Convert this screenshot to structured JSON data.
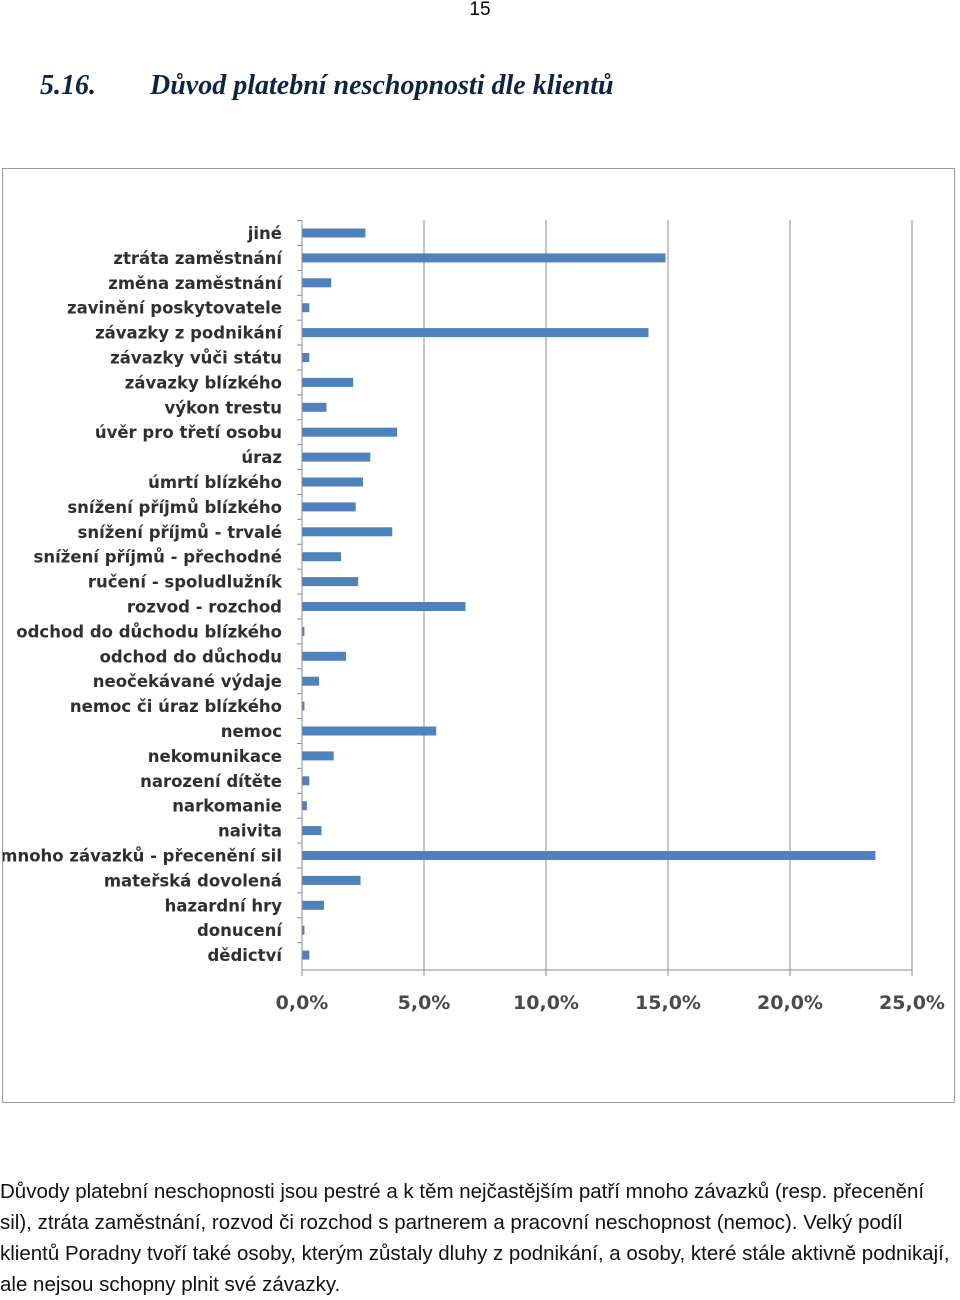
{
  "page_number": "15",
  "section": {
    "number": "5.16.",
    "title": "Důvod platební neschopnosti dle klientů"
  },
  "chart_data": {
    "type": "bar",
    "orientation": "horizontal",
    "title": "",
    "xlabel": "",
    "ylabel": "",
    "xlim": [
      0,
      25
    ],
    "x_ticks": [
      "0,0%",
      "5,0%",
      "10,0%",
      "15,0%",
      "20,0%",
      "25,0%"
    ],
    "grid": true,
    "bar_color": "#4f81bd",
    "categories": [
      "jiné",
      "ztráta zaměstnání",
      "změna zaměstnání",
      "zavinění poskytovatele",
      "závazky z podnikání",
      "závazky vůči státu",
      "závazky blízkého",
      "výkon trestu",
      "úvěr pro třetí osobu",
      "úraz",
      "úmrtí blízkého",
      "snížení příjmů blízkého",
      "snížení příjmů - trvalé",
      "snížení příjmů - přechodné",
      "ručení - spoludlužník",
      "rozvod - rozchod",
      "odchod do důchodu blízkého",
      "odchod do důchodu",
      "neočekávané výdaje",
      "nemoc či úraz blízkého",
      "nemoc",
      "nekomunikace",
      "narození dítěte",
      "narkomanie",
      "naivita",
      "mnoho závazků - přecenění sil",
      "mateřská dovolená",
      "hazardní hry",
      "donucení",
      "dědictví"
    ],
    "values": [
      2.6,
      14.9,
      1.2,
      0.3,
      14.2,
      0.3,
      2.1,
      1.0,
      3.9,
      2.8,
      2.5,
      2.2,
      3.7,
      1.6,
      2.3,
      6.7,
      0.1,
      1.8,
      0.7,
      0.1,
      5.5,
      1.3,
      0.3,
      0.2,
      0.8,
      23.5,
      2.4,
      0.9,
      0.1,
      0.3
    ]
  },
  "paragraph": "Důvody platební neschopnosti jsou pestré a k těm nejčastějším patří mnoho závazků (resp. přecenění sil), ztráta zaměstnání, rozvod či rozchod s partnerem a pracovní neschopnost (nemoc). Velký podíl klientů Poradny tvoří také osoby, kterým zůstaly dluhy z podnikání, a osoby, které stále aktivně podnikají, ale nejsou schopny plnit své závazky."
}
